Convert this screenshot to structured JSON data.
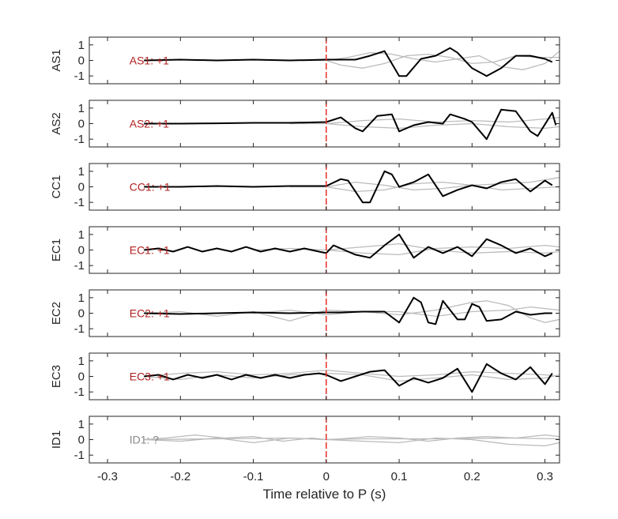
{
  "chart_data": {
    "type": "line",
    "xlabel": "Time relative to P (s)",
    "xlim": [
      -0.325,
      0.32
    ],
    "ylim": [
      -1.5,
      1.5
    ],
    "xticks": [
      -0.3,
      -0.2,
      -0.1,
      0,
      0.1,
      0.2,
      0.3
    ],
    "yticks": [
      -1,
      0,
      1
    ],
    "grid": false,
    "pick_marker": {
      "x": 0,
      "color": "#e8302a",
      "style": "dashed"
    },
    "panels": [
      {
        "ylabel": "AS1",
        "label": "AS1: +1",
        "label_color": "#b22222",
        "series": [
          {
            "color": "#000000",
            "x": [
              -0.25,
              -0.2,
              -0.15,
              -0.1,
              -0.05,
              0,
              0.02,
              0.04,
              0.06,
              0.08,
              0.1,
              0.11,
              0.13,
              0.15,
              0.17,
              0.18,
              0.2,
              0.22,
              0.24,
              0.26,
              0.28,
              0.3,
              0.31
            ],
            "y": [
              0,
              0.05,
              0,
              0.05,
              0,
              0.05,
              0.05,
              0.05,
              0.3,
              0.6,
              -1.0,
              -1.0,
              0.1,
              0.3,
              0.8,
              0.5,
              -0.5,
              -1.0,
              -0.5,
              0.3,
              0.3,
              0.1,
              -0.1
            ]
          },
          {
            "color": "#bbbbbb",
            "x": [
              -0.05,
              0,
              0.02,
              0.05,
              0.08,
              0.11,
              0.14,
              0.17,
              0.2,
              0.23,
              0.26,
              0.29,
              0.32
            ],
            "y": [
              0,
              0,
              -0.3,
              -0.5,
              -0.2,
              0.3,
              0.4,
              0.2,
              -0.2,
              -0.1,
              0.3,
              0.2,
              0.2
            ]
          },
          {
            "color": "#bbbbbb",
            "x": [
              0,
              0.03,
              0.06,
              0.09,
              0.12,
              0.15,
              0.18,
              0.21,
              0.24,
              0.27,
              0.3,
              0.32
            ],
            "y": [
              0,
              0.2,
              0.5,
              0.4,
              0.1,
              -0.1,
              0.1,
              0.3,
              -0.4,
              -0.6,
              -0.2,
              0.6
            ]
          }
        ]
      },
      {
        "ylabel": "AS2",
        "label": "AS2: +1",
        "label_color": "#b22222",
        "series": [
          {
            "color": "#000000",
            "x": [
              -0.25,
              -0.2,
              -0.15,
              -0.1,
              -0.05,
              0,
              0.02,
              0.04,
              0.05,
              0.07,
              0.09,
              0.1,
              0.12,
              0.14,
              0.16,
              0.17,
              0.19,
              0.2,
              0.22,
              0.24,
              0.26,
              0.28,
              0.29,
              0.31,
              0.315
            ],
            "y": [
              0,
              0,
              0.02,
              0.05,
              0.05,
              0.1,
              0.4,
              -0.3,
              -0.5,
              0.5,
              0.6,
              -0.5,
              -0.1,
              0.1,
              0.0,
              0.6,
              0.3,
              0.1,
              -1.0,
              0.9,
              0.8,
              -0.5,
              -0.8,
              0.7,
              -0.1
            ]
          },
          {
            "color": "#bbbbbb",
            "x": [
              -0.05,
              0,
              0.05,
              0.1,
              0.15,
              0.2,
              0.25,
              0.3,
              0.32
            ],
            "y": [
              0,
              0,
              0.2,
              0.3,
              0.1,
              0.2,
              0.1,
              0.3,
              0.4
            ]
          },
          {
            "color": "#bbbbbb",
            "x": [
              0,
              0.05,
              0.1,
              0.15,
              0.2,
              0.25,
              0.3,
              0.32
            ],
            "y": [
              0,
              -0.2,
              -0.3,
              -0.1,
              0.0,
              -0.2,
              -0.3,
              -0.2
            ]
          }
        ]
      },
      {
        "ylabel": "CC1",
        "label": "CC1: +1",
        "label_color": "#b22222",
        "series": [
          {
            "color": "#000000",
            "x": [
              -0.25,
              -0.2,
              -0.15,
              -0.1,
              -0.05,
              0,
              0.02,
              0.03,
              0.05,
              0.06,
              0.08,
              0.09,
              0.1,
              0.12,
              0.14,
              0.16,
              0.18,
              0.2,
              0.22,
              0.24,
              0.26,
              0.28,
              0.3,
              0.31
            ],
            "y": [
              0,
              0,
              0.05,
              0,
              0.05,
              0.05,
              0.5,
              0.4,
              -1.0,
              -1.0,
              1.0,
              0.8,
              0.0,
              0.3,
              0.8,
              -0.6,
              -0.2,
              0.1,
              -0.1,
              0.3,
              0.5,
              -0.3,
              0.4,
              0.1
            ]
          },
          {
            "color": "#bbbbbb",
            "x": [
              -0.05,
              0,
              0.04,
              0.08,
              0.12,
              0.16,
              0.2,
              0.24,
              0.28,
              0.32
            ],
            "y": [
              0,
              0,
              -0.3,
              -0.2,
              0.2,
              0.3,
              0.1,
              0.2,
              0.3,
              0.6
            ]
          },
          {
            "color": "#bbbbbb",
            "x": [
              0,
              0.04,
              0.08,
              0.12,
              0.16,
              0.2,
              0.24,
              0.28,
              0.32
            ],
            "y": [
              0,
              0.3,
              0.1,
              -0.2,
              -0.1,
              0.1,
              -0.2,
              -0.1,
              0.0
            ]
          }
        ]
      },
      {
        "ylabel": "EC1",
        "label": "EC1: +1",
        "label_color": "#b22222",
        "series": [
          {
            "color": "#000000",
            "x": [
              -0.25,
              -0.23,
              -0.21,
              -0.19,
              -0.17,
              -0.15,
              -0.13,
              -0.11,
              -0.09,
              -0.07,
              -0.05,
              -0.03,
              -0.01,
              0,
              0.01,
              0.02,
              0.04,
              0.06,
              0.08,
              0.1,
              0.12,
              0.14,
              0.16,
              0.18,
              0.2,
              0.22,
              0.24,
              0.26,
              0.28,
              0.3,
              0.31
            ],
            "y": [
              0,
              0.1,
              -0.1,
              0.2,
              -0.1,
              0.1,
              -0.1,
              0.2,
              -0.1,
              0.1,
              -0.1,
              0.1,
              -0.1,
              -0.2,
              0.3,
              0.1,
              -0.3,
              -0.5,
              0.3,
              1.0,
              -0.5,
              0.2,
              -0.2,
              0.2,
              -0.4,
              0.7,
              0.3,
              -0.2,
              0.1,
              -0.4,
              -0.2
            ]
          },
          {
            "color": "#bbbbbb",
            "x": [
              -0.1,
              -0.05,
              0,
              0.05,
              0.1,
              0.15,
              0.2,
              0.25,
              0.3,
              0.32
            ],
            "y": [
              0,
              0.1,
              0,
              -0.2,
              -0.3,
              0.1,
              0.2,
              0.1,
              0.3,
              0.2
            ]
          },
          {
            "color": "#bbbbbb",
            "x": [
              0,
              0.05,
              0.1,
              0.15,
              0.2,
              0.25,
              0.3,
              0.32
            ],
            "y": [
              0,
              0.2,
              0.4,
              0.0,
              -0.2,
              -0.1,
              -0.2,
              -0.1
            ]
          }
        ]
      },
      {
        "ylabel": "EC2",
        "label": "EC2: +1",
        "label_color": "#b22222",
        "series": [
          {
            "color": "#000000",
            "x": [
              -0.25,
              -0.2,
              -0.15,
              -0.1,
              -0.05,
              0,
              0.02,
              0.05,
              0.08,
              0.1,
              0.11,
              0.12,
              0.13,
              0.14,
              0.15,
              0.16,
              0.18,
              0.19,
              0.2,
              0.21,
              0.22,
              0.24,
              0.26,
              0.28,
              0.3,
              0.31
            ],
            "y": [
              0,
              -0.05,
              0,
              0.05,
              0,
              0.05,
              0.05,
              0.1,
              0.1,
              -0.6,
              0.2,
              1.0,
              0.7,
              -0.6,
              -0.7,
              0.8,
              -0.4,
              -0.4,
              0.6,
              0.4,
              -0.5,
              -0.4,
              0.1,
              -0.1,
              0.0,
              0.0
            ]
          },
          {
            "color": "#bbbbbb",
            "x": [
              -0.25,
              -0.2,
              -0.15,
              -0.1,
              -0.05,
              0,
              0.05,
              0.1,
              0.15,
              0.2,
              0.22,
              0.25,
              0.28,
              0.3,
              0.32
            ],
            "y": [
              0,
              0.1,
              -0.2,
              0.1,
              -0.5,
              0.2,
              0.1,
              -0.1,
              0.2,
              0.7,
              0.8,
              0.5,
              -0.3,
              -0.6,
              -0.4
            ]
          },
          {
            "color": "#bbbbbb",
            "x": [
              -0.1,
              -0.05,
              0,
              0.05,
              0.1,
              0.15,
              0.2,
              0.25,
              0.28,
              0.32
            ],
            "y": [
              0,
              0.2,
              -0.1,
              0.1,
              0.1,
              -0.2,
              0.1,
              0.2,
              0.4,
              0.2
            ]
          }
        ]
      },
      {
        "ylabel": "EC3",
        "label": "EC3: +1",
        "label_color": "#b22222",
        "series": [
          {
            "color": "#000000",
            "x": [
              -0.25,
              -0.23,
              -0.21,
              -0.19,
              -0.17,
              -0.15,
              -0.13,
              -0.11,
              -0.09,
              -0.07,
              -0.05,
              -0.03,
              -0.01,
              0,
              0.02,
              0.04,
              0.06,
              0.08,
              0.1,
              0.12,
              0.14,
              0.16,
              0.18,
              0.2,
              0.22,
              0.24,
              0.26,
              0.28,
              0.3,
              0.31
            ],
            "y": [
              0,
              0.1,
              -0.2,
              0.1,
              -0.1,
              0.1,
              -0.2,
              0.1,
              -0.1,
              0.1,
              -0.1,
              0.1,
              0.2,
              0.1,
              -0.3,
              0.0,
              0.3,
              0.4,
              -0.6,
              -0.1,
              -0.4,
              -0.1,
              0.5,
              -1.0,
              0.8,
              0.2,
              -0.2,
              0.6,
              -0.5,
              0.2
            ]
          },
          {
            "color": "#bbbbbb",
            "x": [
              -0.25,
              -0.2,
              -0.15,
              -0.1,
              -0.05,
              0,
              0.05,
              0.1,
              0.15,
              0.2,
              0.25,
              0.3,
              0.32
            ],
            "y": [
              0,
              0.2,
              0.3,
              0.1,
              0.2,
              0.4,
              0.2,
              0.0,
              0.1,
              0.3,
              0.2,
              0.1,
              0.0
            ]
          },
          {
            "color": "#bbbbbb",
            "x": [
              -0.25,
              -0.2,
              -0.15,
              -0.1,
              -0.05,
              0,
              0.05,
              0.1,
              0.15,
              0.2,
              0.25,
              0.3,
              0.32
            ],
            "y": [
              0,
              -0.2,
              0.1,
              -0.1,
              0.1,
              0.2,
              0.1,
              -0.3,
              -0.1,
              0.1,
              -0.2,
              -0.1,
              0.1
            ]
          }
        ]
      },
      {
        "ylabel": "ID1",
        "label": "ID1: ?",
        "label_color": "#888888",
        "series": [
          {
            "color": "#bbbbbb",
            "x": [
              -0.25,
              -0.22,
              -0.18,
              -0.14,
              -0.1,
              -0.06,
              -0.02,
              0,
              0.02,
              0.06,
              0.1,
              0.14,
              0.18,
              0.22,
              0.26,
              0.3,
              0.32
            ],
            "y": [
              0,
              0.1,
              0.3,
              0.1,
              0.2,
              -0.1,
              0.1,
              0.0,
              0.05,
              0.2,
              0.1,
              -0.1,
              0.1,
              0.2,
              0.1,
              0.3,
              0.2
            ]
          },
          {
            "color": "#bbbbbb",
            "x": [
              -0.25,
              -0.2,
              -0.15,
              -0.1,
              -0.05,
              0,
              0.05,
              0.1,
              0.15,
              0.2,
              0.25,
              0.3,
              0.32
            ],
            "y": [
              0,
              -0.1,
              0.1,
              -0.2,
              0.1,
              0.0,
              -0.1,
              -0.2,
              0.1,
              0.0,
              -0.3,
              -0.4,
              -0.2
            ]
          },
          {
            "color": "#bbbbbb",
            "x": [
              -0.25,
              -0.15,
              -0.05,
              0,
              0.05,
              0.15,
              0.25,
              0.32
            ],
            "y": [
              0,
              0.05,
              0.1,
              0.0,
              0.05,
              0.05,
              0.1,
              0.05
            ]
          }
        ]
      }
    ]
  }
}
